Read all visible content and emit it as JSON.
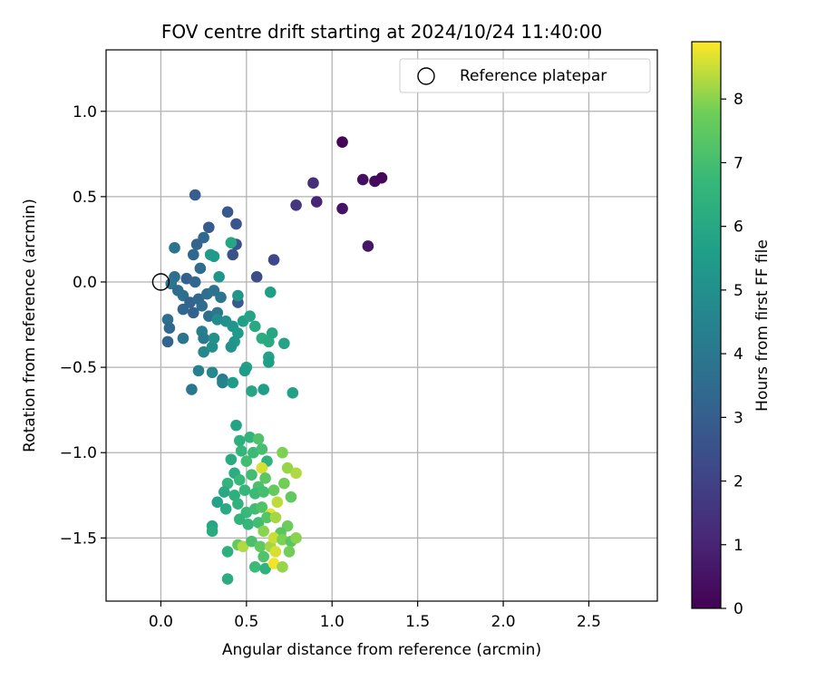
{
  "chart_data": {
    "type": "scatter",
    "title": "FOV centre drift starting at 2024/10/24 11:40:00",
    "xlabel": "Angular distance from reference (arcmin)",
    "ylabel": "Rotation from reference (arcmin)",
    "xlim": [
      -0.32,
      2.9
    ],
    "ylim": [
      -1.87,
      1.36
    ],
    "xticks": [
      0.0,
      0.5,
      1.0,
      1.5,
      2.0,
      2.5
    ],
    "xtick_labels": [
      "0.0",
      "0.5",
      "1.0",
      "1.5",
      "2.0",
      "2.5"
    ],
    "yticks": [
      -1.5,
      -1.0,
      -0.5,
      0.0,
      0.5,
      1.0
    ],
    "ytick_labels": [
      "−1.5",
      "−1.0",
      "−0.5",
      "0.0",
      "0.5",
      "1.0"
    ],
    "grid": true,
    "legend": {
      "placement": "top-right",
      "entries": [
        "Reference platepar"
      ]
    },
    "reference_point": {
      "x": 0.0,
      "y": 0.0,
      "marker": "open-circle"
    },
    "colorbar": {
      "label": "Hours from first FF file",
      "colormap": "viridis",
      "range": [
        0,
        8.9
      ],
      "ticks": [
        0,
        1,
        2,
        3,
        4,
        5,
        6,
        7,
        8
      ],
      "tick_labels": [
        "0",
        "1",
        "2",
        "3",
        "4",
        "5",
        "6",
        "7",
        "8"
      ]
    },
    "series": [
      {
        "marker": "filled-circle",
        "color_by": "hours",
        "points": [
          [
            1.06,
            0.82,
            0.1
          ],
          [
            1.29,
            0.61,
            0.2
          ],
          [
            1.25,
            0.59,
            0.3
          ],
          [
            1.18,
            0.6,
            0.4
          ],
          [
            1.06,
            0.43,
            0.5
          ],
          [
            1.21,
            0.21,
            0.6
          ],
          [
            0.91,
            0.47,
            1.0
          ],
          [
            0.89,
            0.58,
            1.3
          ],
          [
            0.79,
            0.45,
            1.6
          ],
          [
            0.66,
            0.13,
            2.2
          ],
          [
            0.56,
            0.03,
            2.4
          ],
          [
            0.44,
            0.34,
            2.7
          ],
          [
            0.39,
            0.41,
            2.8
          ],
          [
            0.44,
            0.22,
            2.5
          ],
          [
            0.2,
            0.51,
            3.0
          ],
          [
            0.28,
            0.32,
            2.9
          ],
          [
            0.21,
            0.22,
            3.2
          ],
          [
            0.42,
            0.16,
            2.6
          ],
          [
            0.25,
            0.26,
            3.4
          ],
          [
            0.19,
            0.16,
            3.3
          ],
          [
            0.23,
            0.08,
            3.5
          ],
          [
            0.08,
            0.2,
            3.8
          ],
          [
            0.08,
            0.03,
            3.6
          ],
          [
            0.15,
            0.02,
            3.1
          ],
          [
            0.2,
            0.0,
            3.3
          ],
          [
            0.06,
            -0.01,
            3.9
          ],
          [
            0.1,
            -0.05,
            3.5
          ],
          [
            0.13,
            -0.08,
            3.7
          ],
          [
            0.17,
            -0.12,
            3.2
          ],
          [
            0.22,
            -0.1,
            3.4
          ],
          [
            0.27,
            -0.07,
            3.6
          ],
          [
            0.31,
            -0.05,
            3.8
          ],
          [
            0.35,
            -0.09,
            3.9
          ],
          [
            0.13,
            -0.16,
            3.3
          ],
          [
            0.19,
            -0.18,
            3.1
          ],
          [
            0.24,
            -0.14,
            3.5
          ],
          [
            0.28,
            -0.2,
            3.7
          ],
          [
            0.33,
            -0.18,
            4.0
          ],
          [
            0.45,
            -0.12,
            2.8
          ],
          [
            0.04,
            -0.22,
            3.6
          ],
          [
            0.05,
            -0.27,
            3.4
          ],
          [
            0.04,
            -0.35,
            3.2
          ],
          [
            0.13,
            -0.33,
            3.9
          ],
          [
            0.24,
            -0.29,
            4.3
          ],
          [
            0.25,
            -0.33,
            4.1
          ],
          [
            0.25,
            -0.41,
            4.6
          ],
          [
            0.3,
            -0.38,
            4.9
          ],
          [
            0.18,
            -0.63,
            4.0
          ],
          [
            0.22,
            -0.52,
            4.4
          ],
          [
            0.3,
            -0.53,
            4.7
          ],
          [
            0.36,
            -0.57,
            4.2
          ],
          [
            0.36,
            -0.59,
            4.5
          ],
          [
            0.42,
            -0.59,
            5.5
          ],
          [
            0.33,
            -0.22,
            4.8
          ],
          [
            0.38,
            -0.23,
            5.0
          ],
          [
            0.42,
            -0.26,
            5.2
          ],
          [
            0.45,
            -0.3,
            5.4
          ],
          [
            0.48,
            -0.23,
            5.6
          ],
          [
            0.52,
            -0.2,
            5.8
          ],
          [
            0.55,
            -0.26,
            6.0
          ],
          [
            0.59,
            -0.33,
            6.2
          ],
          [
            0.63,
            -0.35,
            6.1
          ],
          [
            0.65,
            -0.3,
            5.9
          ],
          [
            0.63,
            -0.44,
            5.7
          ],
          [
            0.63,
            -0.47,
            5.6
          ],
          [
            0.72,
            -0.36,
            5.8
          ],
          [
            0.5,
            -0.5,
            5.7
          ],
          [
            0.49,
            -0.52,
            5.5
          ],
          [
            0.53,
            -0.64,
            5.9
          ],
          [
            0.6,
            -0.63,
            5.6
          ],
          [
            0.77,
            -0.65,
            5.7
          ],
          [
            0.43,
            -0.35,
            5.3
          ],
          [
            0.41,
            -0.38,
            5.1
          ],
          [
            0.31,
            -0.33,
            5.0
          ],
          [
            0.45,
            -0.08,
            5.3
          ],
          [
            0.64,
            -0.06,
            5.6
          ],
          [
            0.34,
            0.03,
            5.2
          ],
          [
            0.41,
            0.23,
            5.9
          ],
          [
            0.31,
            0.15,
            5.5
          ],
          [
            0.29,
            0.16,
            5.4
          ],
          [
            0.44,
            -0.84,
            5.8
          ],
          [
            0.46,
            -0.93,
            6.3
          ],
          [
            0.52,
            -0.91,
            6.5
          ],
          [
            0.57,
            -0.92,
            7.2
          ],
          [
            0.47,
            -0.99,
            6.6
          ],
          [
            0.54,
            -1.0,
            6.8
          ],
          [
            0.59,
            -0.98,
            7.0
          ],
          [
            0.41,
            -1.04,
            6.1
          ],
          [
            0.5,
            -1.05,
            6.9
          ],
          [
            0.62,
            -1.05,
            6.4
          ],
          [
            0.71,
            -1.0,
            7.9
          ],
          [
            0.74,
            -1.09,
            8.1
          ],
          [
            0.79,
            -1.12,
            8.3
          ],
          [
            0.59,
            -1.09,
            8.6
          ],
          [
            0.43,
            -1.12,
            6.2
          ],
          [
            0.39,
            -1.18,
            6.5
          ],
          [
            0.46,
            -1.16,
            6.7
          ],
          [
            0.53,
            -1.13,
            6.9
          ],
          [
            0.57,
            -1.2,
            7.1
          ],
          [
            0.61,
            -1.15,
            7.4
          ],
          [
            0.66,
            -1.22,
            7.6
          ],
          [
            0.72,
            -1.18,
            7.8
          ],
          [
            0.76,
            -1.26,
            7.5
          ],
          [
            0.68,
            -1.29,
            8.4
          ],
          [
            0.37,
            -1.23,
            6.0
          ],
          [
            0.43,
            -1.25,
            6.3
          ],
          [
            0.49,
            -1.22,
            6.6
          ],
          [
            0.55,
            -1.24,
            6.8
          ],
          [
            0.6,
            -1.23,
            7.0
          ],
          [
            0.33,
            -1.29,
            5.8
          ],
          [
            0.38,
            -1.33,
            6.1
          ],
          [
            0.45,
            -1.3,
            6.4
          ],
          [
            0.5,
            -1.35,
            6.7
          ],
          [
            0.55,
            -1.33,
            6.9
          ],
          [
            0.59,
            -1.32,
            7.2
          ],
          [
            0.64,
            -1.36,
            8.7
          ],
          [
            0.46,
            -1.39,
            6.5
          ],
          [
            0.51,
            -1.42,
            6.6
          ],
          [
            0.57,
            -1.41,
            6.9
          ],
          [
            0.62,
            -1.38,
            7.3
          ],
          [
            0.67,
            -1.38,
            8.2
          ],
          [
            0.74,
            -1.43,
            7.7
          ],
          [
            0.6,
            -1.46,
            8.0
          ],
          [
            0.7,
            -1.47,
            7.4
          ],
          [
            0.3,
            -1.43,
            5.9
          ],
          [
            0.3,
            -1.46,
            6.1
          ],
          [
            0.39,
            -1.58,
            6.3
          ],
          [
            0.45,
            -1.54,
            7.6
          ],
          [
            0.48,
            -1.55,
            8.3
          ],
          [
            0.53,
            -1.52,
            7.1
          ],
          [
            0.58,
            -1.55,
            7.5
          ],
          [
            0.64,
            -1.55,
            8.2
          ],
          [
            0.66,
            -1.5,
            8.5
          ],
          [
            0.71,
            -1.51,
            7.9
          ],
          [
            0.76,
            -1.52,
            7.4
          ],
          [
            0.79,
            -1.5,
            8.0
          ],
          [
            0.67,
            -1.58,
            8.6
          ],
          [
            0.75,
            -1.58,
            7.8
          ],
          [
            0.6,
            -1.61,
            7.2
          ],
          [
            0.55,
            -1.67,
            6.8
          ],
          [
            0.61,
            -1.68,
            6.4
          ],
          [
            0.66,
            -1.65,
            8.8
          ],
          [
            0.71,
            -1.67,
            8.1
          ],
          [
            0.39,
            -1.74,
            6.2
          ]
        ]
      }
    ]
  }
}
